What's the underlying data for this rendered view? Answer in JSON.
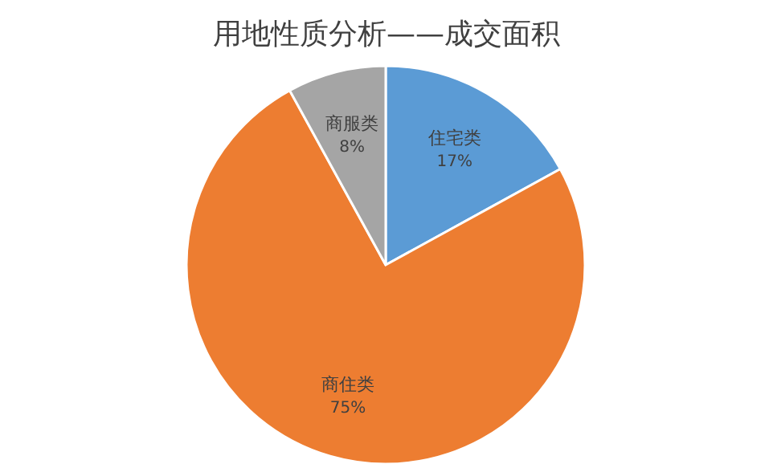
{
  "chart_data": {
    "type": "pie",
    "title": "用地性质分析——成交面积",
    "categories": [
      "住宅类",
      "商住类",
      "商服类"
    ],
    "values": [
      17,
      75,
      8
    ],
    "colors": [
      "#5b9bd5",
      "#ed7d31",
      "#a5a5a5"
    ],
    "value_labels": [
      "17%",
      "75%",
      "8%"
    ]
  }
}
